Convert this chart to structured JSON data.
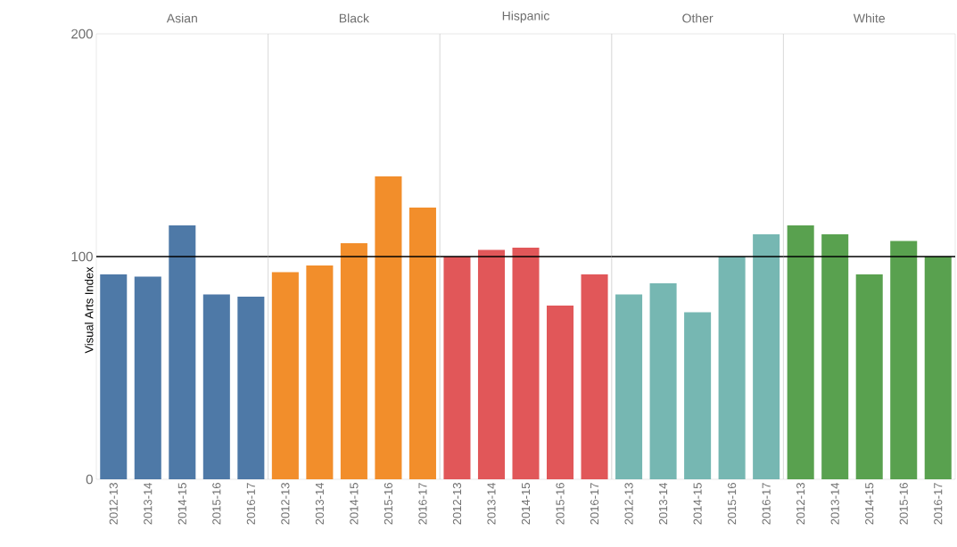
{
  "chart_data": [
    {
      "type": "bar",
      "title": "Asian",
      "ylabel": "Visual Arts Index",
      "categories": [
        "2012-13",
        "2013-14",
        "2014-15",
        "2015-16",
        "2016-17"
      ],
      "values": [
        92,
        91,
        114,
        83,
        82
      ],
      "color": "#4e79a7",
      "ylim": [
        0,
        200
      ],
      "yticks": [
        0,
        100,
        200
      ],
      "ref_lines": [
        {
          "axis": "y",
          "value": 100,
          "color": "#000000"
        }
      ]
    },
    {
      "type": "bar",
      "title": "Black",
      "categories": [
        "2012-13",
        "2013-14",
        "2014-15",
        "2015-16",
        "2016-17"
      ],
      "values": [
        93,
        96,
        106,
        136,
        122
      ],
      "color": "#f28e2b",
      "ylim": [
        0,
        200
      ],
      "yticks": [
        0,
        100,
        200
      ],
      "tick_labels": "x",
      "ref_lines": [
        {
          "axis": "y",
          "value": 100,
          "color": "#000000"
        }
      ]
    },
    {
      "type": "bar",
      "title": "Hispanic",
      "categories": [
        "2012-13",
        "2013-14",
        "2014-15",
        "2015-16",
        "2016-17"
      ],
      "values": [
        100,
        103,
        104,
        78,
        92
      ],
      "color": "#e15759",
      "ylim": [
        0,
        200
      ],
      "yticks": [
        0,
        100,
        200
      ],
      "tick_labels": "x",
      "ref_lines": [
        {
          "axis": "y",
          "value": 100,
          "color": "#000000"
        }
      ]
    },
    {
      "type": "bar",
      "title": "Other",
      "categories": [
        "2012-13",
        "2013-14",
        "2014-15",
        "2015-16",
        "2016-17"
      ],
      "values": [
        83,
        88,
        75,
        100,
        110
      ],
      "color": "#76b7b2",
      "ylim": [
        0,
        200
      ],
      "yticks": [
        0,
        100,
        200
      ],
      "tick_labels": "x",
      "ref_lines": [
        {
          "axis": "y",
          "value": 100,
          "color": "#000000"
        }
      ]
    },
    {
      "type": "bar",
      "title": "White",
      "categories": [
        "2012-13",
        "2013-14",
        "2014-15",
        "2015-16",
        "2016-17"
      ],
      "values": [
        114,
        110,
        92,
        107,
        100
      ],
      "color": "#59a14f",
      "ylim": [
        0,
        200
      ],
      "yticks": [
        0,
        100,
        200
      ],
      "tick_labels": "x",
      "ref_lines": [
        {
          "axis": "y",
          "value": 100,
          "color": "#000000"
        }
      ]
    }
  ]
}
